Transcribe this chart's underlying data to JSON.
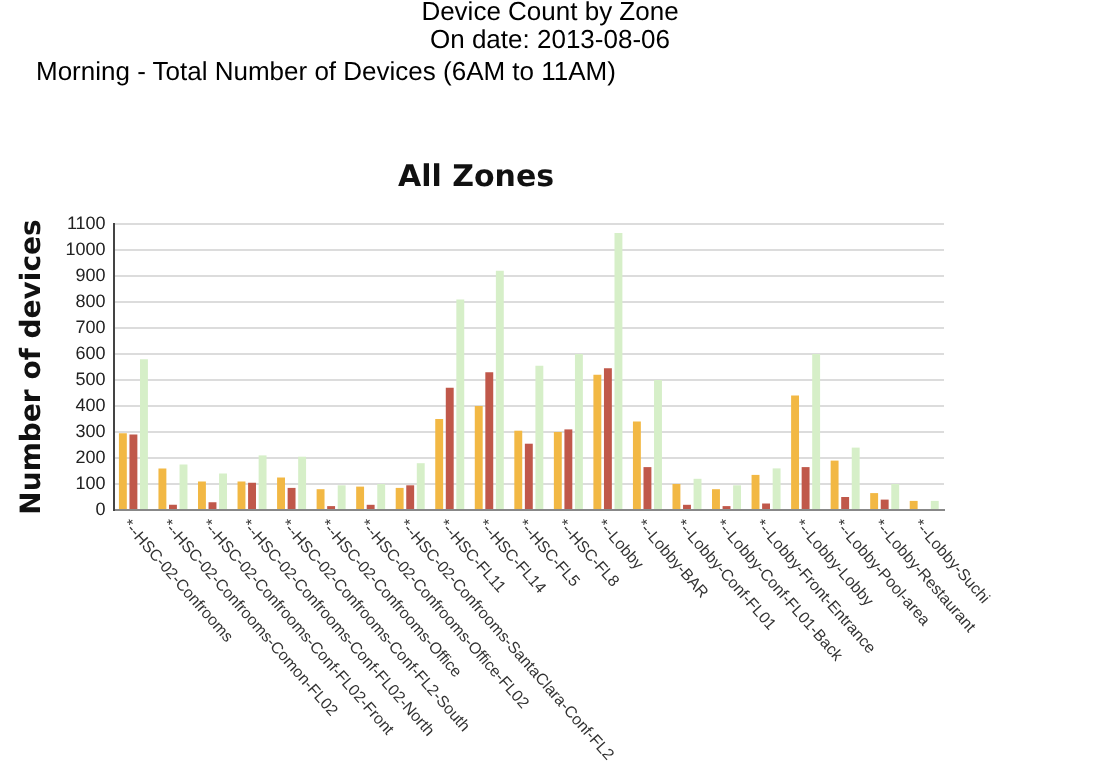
{
  "chart_data": {
    "type": "bar",
    "title": "All Zones",
    "annotations": [
      "Device Count by Zone",
      "On date: 2013-08-06",
      "Morning - Total Number of Devices (6AM to 11AM)"
    ],
    "ylabel": "Number of devices",
    "categories": [
      "*--HSC-02-Confrooms",
      "*--HSC-02-Confrooms-Comon-FL02",
      "*--HSC-02-Confrooms-Conf-FL02-Front",
      "*--HSC-02-Confrooms-Conf-FL02-North",
      "*--HSC-02-Confrooms-Conf-FL2-South",
      "*--HSC-02-Confrooms-Office",
      "*--HSC-02-Confrooms-Office-FL02",
      "*--HSC-02-Confrooms-SantaClara-Conf-FL2",
      "*--HSC-FL11",
      "*--HSC-FL14",
      "*--HSC-FL5",
      "*--HSC-FL8",
      "*--Lobby",
      "*--Lobby-BAR",
      "*--Lobby-Conf-FL01",
      "*--Lobby-Conf-FL01-Back",
      "*--Lobby-Front-Entrance",
      "*--Lobby-Lobby",
      "*--Lobby-Pool-area",
      "*--Lobby-Restaurant",
      "*--Lobby-Suchi"
    ],
    "series": [
      {
        "color": "#f2b844",
        "values": [
          295,
          160,
          110,
          110,
          125,
          80,
          90,
          85,
          350,
          400,
          305,
          300,
          520,
          340,
          100,
          80,
          135,
          440,
          190,
          65,
          35
        ]
      },
      {
        "color": "#c0584a",
        "values": [
          290,
          20,
          30,
          105,
          85,
          15,
          20,
          95,
          470,
          530,
          255,
          310,
          545,
          165,
          20,
          15,
          25,
          165,
          50,
          40,
          null
        ]
      },
      {
        "color": "#d6efc8",
        "values": [
          580,
          175,
          140,
          210,
          205,
          95,
          100,
          180,
          810,
          920,
          555,
          600,
          1065,
          500,
          120,
          95,
          160,
          600,
          240,
          100,
          35
        ]
      }
    ],
    "ylim": [
      0,
      1100
    ],
    "yticks": [
      0,
      100,
      200,
      300,
      400,
      500,
      600,
      700,
      800,
      900,
      1000,
      1100
    ],
    "grid": "y"
  }
}
